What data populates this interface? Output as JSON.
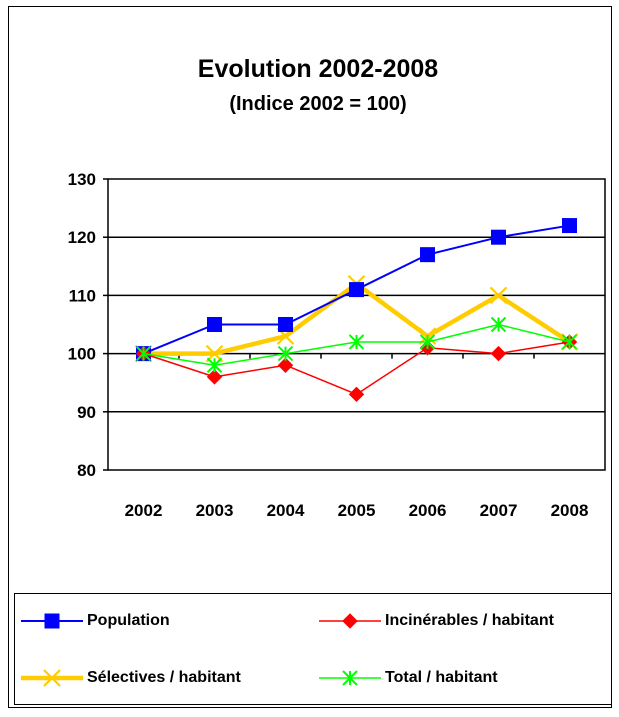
{
  "chart_data": {
    "type": "line",
    "title": "Evolution 2002-2008",
    "subtitle": "(Indice 2002 = 100)",
    "categories": [
      "2002",
      "2003",
      "2004",
      "2005",
      "2006",
      "2007",
      "2008"
    ],
    "ylim": [
      80,
      130
    ],
    "yticks": [
      80,
      90,
      100,
      110,
      120,
      130
    ],
    "grid": true,
    "legend_position": "bottom",
    "series": [
      {
        "name": "Population",
        "color": "#0000FF",
        "marker": "square",
        "values": [
          100,
          105,
          105,
          111,
          117,
          120,
          122
        ]
      },
      {
        "name": "Incinérables / habitant",
        "color": "#FF0000",
        "marker": "diamond",
        "values": [
          100,
          96,
          98,
          93,
          101,
          100,
          102
        ]
      },
      {
        "name": "Sélectives / habitant",
        "color": "#FFCC00",
        "marker": "x",
        "values": [
          100,
          100,
          103,
          112,
          103,
          110,
          102
        ]
      },
      {
        "name": "Total / habitant",
        "color": "#00FF00",
        "marker": "asterisk",
        "values": [
          100,
          98,
          100,
          102,
          102,
          105,
          102
        ]
      }
    ]
  }
}
